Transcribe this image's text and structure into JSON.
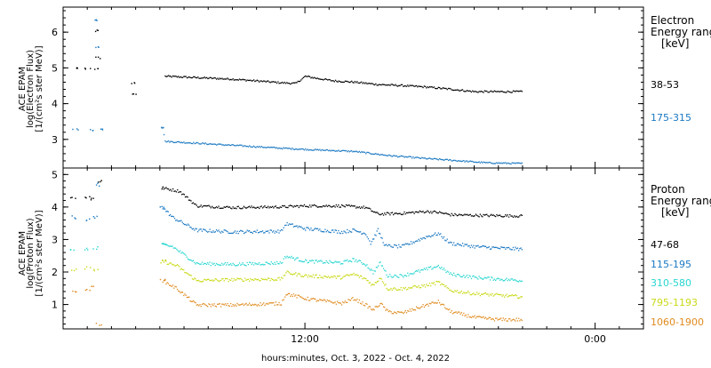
{
  "chart_data": [
    {
      "type": "scatter",
      "instrument": "ACE EPAM",
      "ylabel_lines": [
        "ACE EPAM",
        "log(Electron Flux)",
        "[1/(cm²s ster MeV)]"
      ],
      "ylim": [
        2.2,
        6.7
      ],
      "yticks": [
        3,
        4,
        5,
        6
      ],
      "legend_title": [
        "Electron",
        "Energy ranges",
        "[keV]"
      ],
      "series": [
        {
          "name": "38-53",
          "color": "#000000",
          "points": [
            [
              -9.5,
              5.02
            ],
            [
              -9.0,
              5.0
            ],
            [
              -8.7,
              5.0
            ],
            [
              -8.65,
              6.05
            ],
            [
              -8.55,
              5.3
            ],
            [
              -7.1,
              4.6
            ],
            [
              -7.05,
              4.3
            ],
            [
              -5.8,
              4.78
            ],
            [
              -3.0,
              4.7
            ],
            [
              -1.0,
              4.6
            ],
            [
              -0.4,
              4.58
            ],
            [
              0.0,
              4.78
            ],
            [
              0.5,
              4.72
            ],
            [
              1.2,
              4.65
            ],
            [
              2.0,
              4.62
            ],
            [
              3.0,
              4.55
            ],
            [
              4.0,
              4.52
            ],
            [
              5.0,
              4.48
            ],
            [
              6.0,
              4.42
            ],
            [
              7.0,
              4.35
            ],
            [
              8.0,
              4.35
            ],
            [
              9.0,
              4.35
            ]
          ],
          "noise": 0.025
        },
        {
          "name": "175-315",
          "color": "#1a78c2",
          "points": [
            [
              -9.5,
              3.3
            ],
            [
              -8.8,
              3.28
            ],
            [
              -8.6,
              6.35
            ],
            [
              -8.55,
              5.6
            ],
            [
              -8.4,
              3.3
            ],
            [
              -5.9,
              3.35
            ],
            [
              -5.8,
              2.96
            ],
            [
              -3.0,
              2.85
            ],
            [
              -1.0,
              2.77
            ],
            [
              0.5,
              2.72
            ],
            [
              2.0,
              2.68
            ],
            [
              3.5,
              2.56
            ],
            [
              5.0,
              2.48
            ],
            [
              6.5,
              2.41
            ],
            [
              7.5,
              2.36
            ],
            [
              9.0,
              2.34
            ]
          ],
          "noise": 0.02
        }
      ]
    },
    {
      "type": "scatter",
      "instrument": "ACE EPAM",
      "ylabel_lines": [
        "ACE EPAM",
        "log(Proton Flux)",
        "[1/(cm²s ster MeV)]"
      ],
      "ylim": [
        0.25,
        5.2
      ],
      "yticks": [
        1,
        2,
        3,
        4,
        5
      ],
      "legend_title": [
        "Proton",
        "Energy ranges",
        "[keV]"
      ],
      "series": [
        {
          "name": "47-68",
          "color": "#000000",
          "points": [
            [
              -9.6,
              4.3
            ],
            [
              -9.0,
              4.32
            ],
            [
              -8.8,
              4.25
            ],
            [
              -8.55,
              4.8
            ],
            [
              -5.9,
              4.6
            ],
            [
              -5.2,
              4.5
            ],
            [
              -4.5,
              4.05
            ],
            [
              -3.0,
              4.0
            ],
            [
              -1.0,
              4.02
            ],
            [
              0.0,
              4.05
            ],
            [
              1.5,
              4.05
            ],
            [
              2.5,
              4.0
            ],
            [
              3.0,
              3.8
            ],
            [
              4.0,
              3.82
            ],
            [
              5.0,
              3.88
            ],
            [
              5.5,
              3.85
            ],
            [
              6.0,
              3.78
            ],
            [
              7.0,
              3.76
            ],
            [
              8.0,
              3.75
            ],
            [
              9.0,
              3.74
            ]
          ],
          "noise": 0.04
        },
        {
          "name": "115-195",
          "color": "#1a78c2",
          "points": [
            [
              -9.6,
              3.7
            ],
            [
              -9.0,
              3.65
            ],
            [
              -8.7,
              3.7
            ],
            [
              -8.6,
              4.7
            ],
            [
              -5.9,
              4.0
            ],
            [
              -5.5,
              3.7
            ],
            [
              -4.5,
              3.3
            ],
            [
              -3.0,
              3.25
            ],
            [
              -1.0,
              3.27
            ],
            [
              -0.8,
              3.5
            ],
            [
              0.0,
              3.35
            ],
            [
              1.5,
              3.25
            ],
            [
              2.0,
              3.3
            ],
            [
              2.5,
              3.2
            ],
            [
              2.7,
              2.9
            ],
            [
              3.0,
              3.3
            ],
            [
              3.3,
              2.82
            ],
            [
              4.0,
              2.8
            ],
            [
              5.0,
              3.1
            ],
            [
              5.5,
              3.2
            ],
            [
              6.0,
              2.9
            ],
            [
              7.0,
              2.8
            ],
            [
              8.0,
              2.75
            ],
            [
              9.0,
              2.72
            ]
          ],
          "noise": 0.05
        },
        {
          "name": "310-580",
          "color": "#27d6d0",
          "points": [
            [
              -9.6,
              2.7
            ],
            [
              -9.0,
              2.72
            ],
            [
              -8.7,
              2.75
            ],
            [
              -5.9,
              2.85
            ],
            [
              -5.5,
              2.8
            ],
            [
              -4.5,
              2.28
            ],
            [
              -3.0,
              2.25
            ],
            [
              -1.0,
              2.3
            ],
            [
              -0.8,
              2.5
            ],
            [
              0.0,
              2.35
            ],
            [
              1.5,
              2.3
            ],
            [
              2.0,
              2.4
            ],
            [
              2.5,
              2.25
            ],
            [
              2.8,
              2.0
            ],
            [
              3.1,
              2.3
            ],
            [
              3.4,
              1.9
            ],
            [
              4.0,
              1.9
            ],
            [
              5.0,
              2.1
            ],
            [
              5.5,
              2.2
            ],
            [
              6.0,
              1.95
            ],
            [
              7.0,
              1.85
            ],
            [
              8.0,
              1.8
            ],
            [
              9.0,
              1.75
            ]
          ],
          "noise": 0.05
        },
        {
          "name": "795-1193",
          "color": "#c9d916",
          "points": [
            [
              -9.6,
              2.1
            ],
            [
              -9.0,
              2.15
            ],
            [
              -8.7,
              2.1
            ],
            [
              -5.9,
              2.35
            ],
            [
              -5.3,
              2.2
            ],
            [
              -4.5,
              1.75
            ],
            [
              -3.0,
              1.78
            ],
            [
              -1.0,
              1.8
            ],
            [
              -0.8,
              2.0
            ],
            [
              0.0,
              1.9
            ],
            [
              1.5,
              1.85
            ],
            [
              2.0,
              1.95
            ],
            [
              2.5,
              1.8
            ],
            [
              2.8,
              1.6
            ],
            [
              3.1,
              1.85
            ],
            [
              3.4,
              1.5
            ],
            [
              4.0,
              1.5
            ],
            [
              5.0,
              1.6
            ],
            [
              5.5,
              1.7
            ],
            [
              6.0,
              1.45
            ],
            [
              7.0,
              1.35
            ],
            [
              8.0,
              1.3
            ],
            [
              9.0,
              1.25
            ]
          ],
          "noise": 0.05
        },
        {
          "name": "1060-1900",
          "color": "#e08a1e",
          "points": [
            [
              -9.6,
              1.4
            ],
            [
              -9.0,
              1.5
            ],
            [
              -8.8,
              1.6
            ],
            [
              -8.55,
              0.42
            ],
            [
              -5.9,
              1.75
            ],
            [
              -5.3,
              1.5
            ],
            [
              -4.5,
              1.0
            ],
            [
              -3.0,
              1.0
            ],
            [
              -1.0,
              1.05
            ],
            [
              -0.8,
              1.35
            ],
            [
              0.0,
              1.2
            ],
            [
              1.5,
              1.05
            ],
            [
              2.0,
              1.2
            ],
            [
              2.5,
              1.0
            ],
            [
              2.8,
              0.85
            ],
            [
              3.1,
              1.05
            ],
            [
              3.4,
              0.8
            ],
            [
              4.0,
              0.75
            ],
            [
              5.0,
              1.0
            ],
            [
              5.5,
              1.1
            ],
            [
              6.0,
              0.8
            ],
            [
              7.0,
              0.62
            ],
            [
              8.0,
              0.55
            ],
            [
              9.0,
              0.55
            ]
          ],
          "noise": 0.05
        }
      ]
    }
  ],
  "x_axis": {
    "xlim": [
      -10.0,
      14.0
    ],
    "ticks": [
      {
        "value": 0,
        "label": "12:00"
      },
      {
        "value": 12,
        "label": "0:00"
      }
    ],
    "minor_step": 1,
    "xlabel": "hours:minutes, Oct.  3, 2022 - Oct.  4, 2022"
  }
}
